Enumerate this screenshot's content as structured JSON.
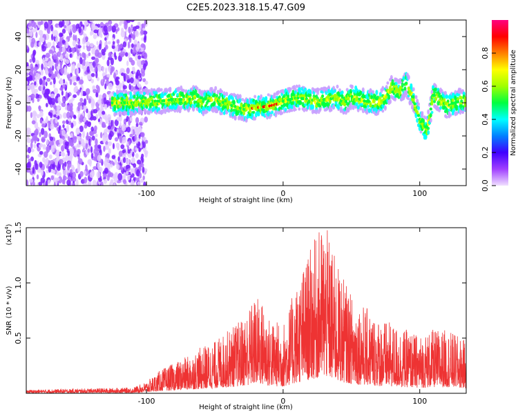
{
  "title": "C2E5.2023.318.15.47.G09",
  "chart_data": [
    {
      "type": "heatmap",
      "xlabel": "Height of straight line (km)",
      "ylabel": "Frequency (Hz)",
      "xlim": [
        -188,
        134
      ],
      "ylim": [
        -50,
        50
      ],
      "xticks": [
        -100,
        0,
        100
      ],
      "yticks": [
        -40,
        -20,
        0,
        20,
        40
      ],
      "colorbar": {
        "label": "Normalized spectral amplitude",
        "ticks": [
          "0.0",
          "0.2",
          "0.4",
          "0.6",
          "0.8"
        ],
        "range": [
          0,
          1
        ],
        "colormap": [
          "#f0e0ff",
          "#a040ff",
          "#4000ff",
          "#0080ff",
          "#00ffff",
          "#00ff40",
          "#a0ff00",
          "#ffff00",
          "#ff8000",
          "#ff0000",
          "#ff0080"
        ]
      },
      "ridge": {
        "x": [
          -120,
          -110,
          -100,
          -90,
          -80,
          -70,
          -64,
          -60,
          -50,
          -40,
          -32,
          -28,
          -20,
          -10,
          -5,
          0,
          5,
          10,
          20,
          25,
          30,
          40,
          45,
          50,
          60,
          70,
          75,
          80,
          85,
          90,
          95,
          100,
          105,
          110,
          115,
          120,
          125,
          130
        ],
        "y": [
          0,
          0,
          1,
          1,
          2,
          2,
          3,
          0,
          2,
          -1,
          -3,
          -4,
          -3,
          -2,
          -1,
          1,
          2,
          3,
          2,
          1,
          2,
          3,
          0,
          4,
          1,
          0,
          3,
          10,
          6,
          12,
          3,
          -10,
          -18,
          5,
          2,
          -2,
          0,
          1
        ]
      }
    },
    {
      "type": "line",
      "xlabel": "Height of straight line (km)",
      "ylabel": "SNR (10 * v/v)",
      "yscale_note": "(x10",
      "yscale_exp": "4",
      "xlim": [
        -188,
        134
      ],
      "ylim": [
        0,
        1.5
      ],
      "xticks": [
        -100,
        0,
        100
      ],
      "yticks": [
        0.5,
        1.0,
        1.5
      ],
      "ytick_labels": [
        "0.5",
        "1.0",
        "1.5"
      ],
      "color": "#ee3333",
      "envelope": {
        "x": [
          -188,
          -150,
          -110,
          -100,
          -90,
          -70,
          -60,
          -50,
          -40,
          -30,
          -20,
          -15,
          -10,
          0,
          10,
          20,
          30,
          40,
          50,
          60,
          70,
          80,
          90,
          100,
          110,
          120,
          134
        ],
        "y": [
          0.03,
          0.04,
          0.05,
          0.1,
          0.2,
          0.32,
          0.4,
          0.45,
          0.55,
          0.65,
          0.85,
          0.8,
          0.65,
          0.6,
          0.95,
          1.25,
          1.5,
          1.1,
          0.85,
          0.75,
          0.65,
          0.6,
          0.55,
          0.5,
          0.55,
          0.55,
          0.45
        ]
      }
    }
  ]
}
